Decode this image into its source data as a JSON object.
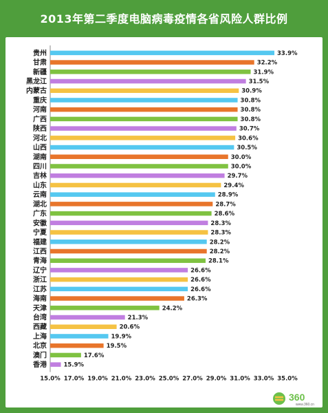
{
  "title": "2013年第二季度电脑病毒疫情各省风险人群比例",
  "logo": {
    "text": "360",
    "subtext": "www.360.cn"
  },
  "chart_data": {
    "type": "bar",
    "orientation": "horizontal",
    "categories": [
      "贵州",
      "甘肃",
      "新疆",
      "黑龙江",
      "内蒙古",
      "重庆",
      "河南",
      "广西",
      "陕西",
      "河北",
      "山西",
      "湖南",
      "四川",
      "吉林",
      "山东",
      "云南",
      "湖北",
      "广东",
      "安徽",
      "宁夏",
      "福建",
      "江西",
      "青海",
      "辽宁",
      "浙江",
      "江苏",
      "海南",
      "天津",
      "台湾",
      "西藏",
      "上海",
      "北京",
      "澳门",
      "香港"
    ],
    "values": [
      33.9,
      32.2,
      31.9,
      31.5,
      30.9,
      30.8,
      30.8,
      30.8,
      30.7,
      30.6,
      30.5,
      30.0,
      30.0,
      29.7,
      29.4,
      28.9,
      28.7,
      28.6,
      28.3,
      28.3,
      28.2,
      28.2,
      28.1,
      26.6,
      26.6,
      26.6,
      26.3,
      24.2,
      21.3,
      20.6,
      19.9,
      19.5,
      17.6,
      15.9
    ],
    "value_labels": [
      "33.9%",
      "32.2%",
      "31.9%",
      "31.5%",
      "30.9%",
      "30.8%",
      "30.8%",
      "30.8%",
      "30.7%",
      "30.6%",
      "30.5%",
      "30.0%",
      "30.0%",
      "29.7%",
      "29.4%",
      "28.9%",
      "28.7%",
      "28.6%",
      "28.3%",
      "28.3%",
      "28.2%",
      "28.2%",
      "28.1%",
      "26.6%",
      "26.6%",
      "26.6%",
      "26.3%",
      "24.2%",
      "21.3%",
      "20.6%",
      "19.9%",
      "19.5%",
      "17.6%",
      "15.9%"
    ],
    "colors": [
      "#55c8f0",
      "#e8752b",
      "#7fc241",
      "#c07ee0",
      "#f5c243"
    ],
    "xlim": [
      15.0,
      35.0
    ],
    "xticks": [
      "15.0%",
      "17.0%",
      "19.0%",
      "21.0%",
      "23.0%",
      "25.0%",
      "27.0%",
      "29.0%",
      "31.0%",
      "33.0%",
      "35.0%"
    ],
    "grid": false,
    "legend": "none"
  }
}
